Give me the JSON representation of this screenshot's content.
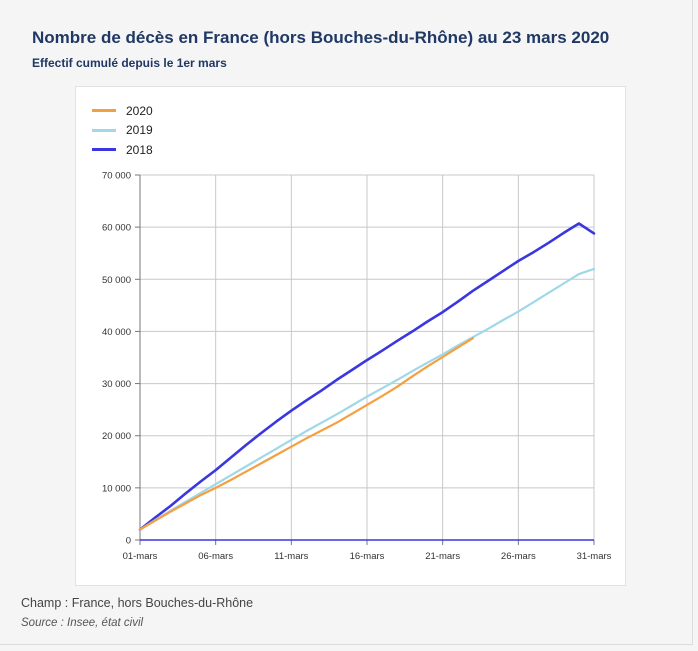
{
  "title": "Nombre de décès en France (hors Bouches-du-Rhône) au 23 mars 2020",
  "subtitle": "Effectif cumulé depuis le 1er mars",
  "note": "Champ : France, hors Bouches-du-Rhône",
  "source": "Source : Insee, état civil",
  "chart_data": {
    "type": "line",
    "title": "Nombre de décès en France (hors Bouches-du-Rhône) au 23 mars 2020",
    "subtitle": "Effectif cumulé depuis le 1er mars",
    "xlabel": "",
    "ylabel": "",
    "x_tick_labels": [
      "01-mars",
      "06-mars",
      "11-mars",
      "16-mars",
      "21-mars",
      "26-mars",
      "31-mars"
    ],
    "x_tick_days": [
      1,
      6,
      11,
      16,
      21,
      26,
      31
    ],
    "xlim": [
      1,
      31
    ],
    "y_ticks": [
      0,
      10000,
      20000,
      30000,
      40000,
      50000,
      60000,
      70000
    ],
    "y_tick_labels": [
      "0",
      "10 000",
      "20 000",
      "30 000",
      "40 000",
      "50 000",
      "60 000",
      "70 000"
    ],
    "ylim": [
      0,
      70000
    ],
    "grid": true,
    "legend_position": "top-left",
    "series": [
      {
        "name": "2020",
        "color": "#f5a040",
        "x": [
          1,
          2,
          3,
          4,
          5,
          6,
          7,
          8,
          9,
          10,
          11,
          12,
          13,
          14,
          15,
          16,
          17,
          18,
          19,
          20,
          21,
          22,
          23
        ],
        "values": [
          2000,
          3700,
          5400,
          7000,
          8600,
          10000,
          11500,
          13100,
          14700,
          16300,
          17900,
          19500,
          21000,
          22500,
          24200,
          25900,
          27600,
          29400,
          31400,
          33300,
          35100,
          36900,
          38700
        ]
      },
      {
        "name": "2019",
        "color": "#9fd8e8",
        "x": [
          1,
          2,
          3,
          4,
          5,
          6,
          7,
          8,
          9,
          10,
          11,
          12,
          13,
          14,
          15,
          16,
          17,
          18,
          19,
          20,
          21,
          22,
          23,
          24,
          25,
          26,
          27,
          28,
          29,
          30,
          31
        ],
        "values": [
          2000,
          3800,
          5600,
          7300,
          9000,
          10700,
          12400,
          14100,
          15800,
          17500,
          19200,
          20900,
          22500,
          24100,
          25800,
          27500,
          29100,
          30700,
          32400,
          34000,
          35600,
          37300,
          38900,
          40500,
          42200,
          43800,
          45600,
          47400,
          49200,
          51000,
          52000
        ]
      },
      {
        "name": "2018",
        "color": "#3a36e0",
        "x": [
          1,
          2,
          3,
          4,
          5,
          6,
          7,
          8,
          9,
          10,
          11,
          12,
          13,
          14,
          15,
          16,
          17,
          18,
          19,
          20,
          21,
          22,
          23,
          24,
          25,
          26,
          27,
          28,
          29,
          30,
          31
        ],
        "values": [
          2000,
          4300,
          6500,
          8900,
          11200,
          13400,
          15800,
          18200,
          20500,
          22700,
          24800,
          26800,
          28700,
          30700,
          32600,
          34500,
          36300,
          38200,
          40000,
          41900,
          43700,
          45700,
          47800,
          49700,
          51600,
          53500,
          55200,
          57000,
          58900,
          60700,
          58800
        ]
      }
    ]
  }
}
